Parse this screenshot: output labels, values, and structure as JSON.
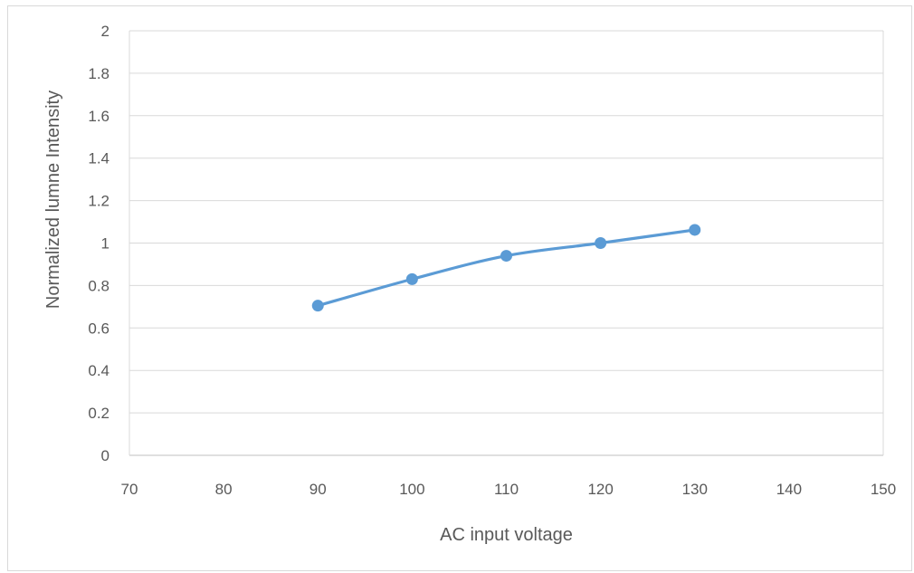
{
  "chart_data": {
    "type": "scatter",
    "title": "",
    "xlabel": "AC input voltage",
    "ylabel": "Normalized lumne Intensity",
    "xlim": [
      70,
      150
    ],
    "ylim": [
      0,
      2
    ],
    "x_ticks": [
      "70",
      "80",
      "90",
      "100",
      "110",
      "120",
      "130",
      "140",
      "150"
    ],
    "y_ticks": [
      "0",
      "0.2",
      "0.4",
      "0.6",
      "0.8",
      "1",
      "1.2",
      "1.4",
      "1.6",
      "1.8",
      "2"
    ],
    "grid": "horizontal",
    "legend": "none",
    "line_style": "smooth",
    "series": [
      {
        "color": "#5b9bd5",
        "x": [
          90,
          100,
          110,
          120,
          130
        ],
        "y": [
          0.705,
          0.83,
          0.94,
          1.0,
          1.062
        ]
      }
    ]
  }
}
